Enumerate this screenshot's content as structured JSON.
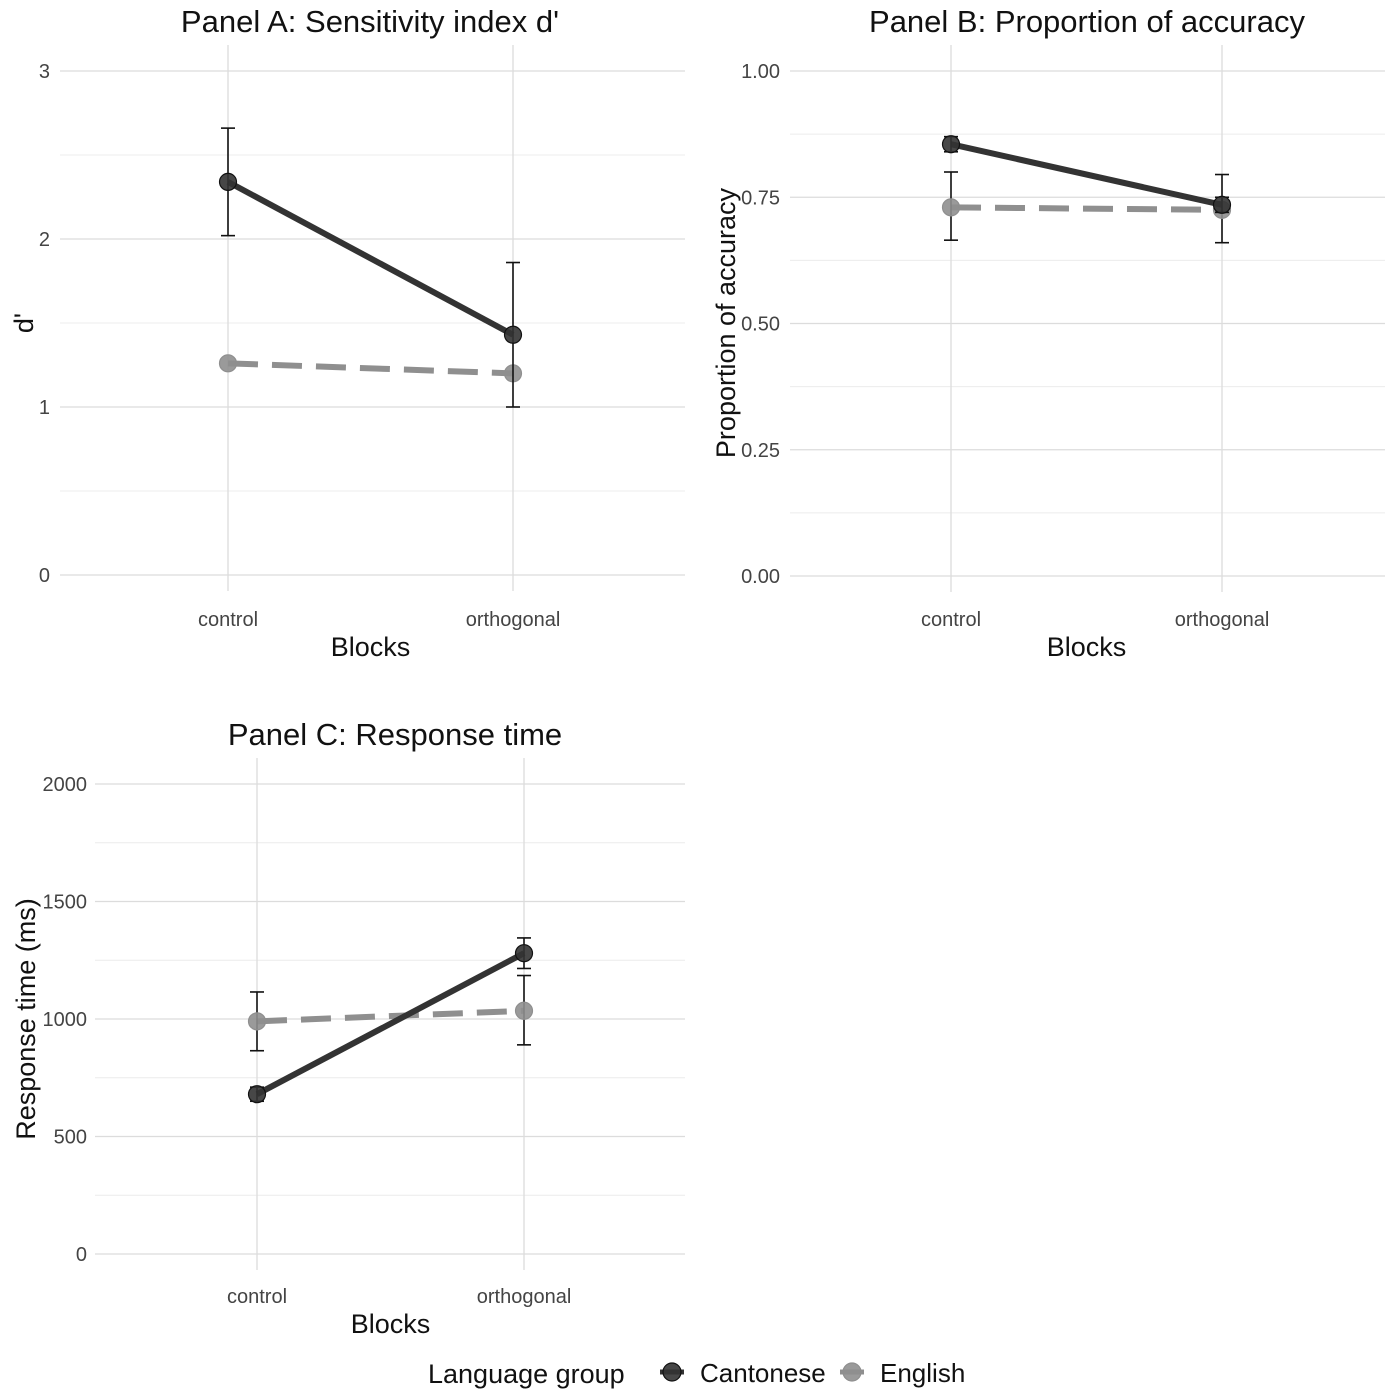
{
  "colors": {
    "cantonese": "#333333",
    "english": "#8f8f8f",
    "grid_major": "#dcdcdc",
    "grid_minor": "#ececec",
    "tick_text": "#444444",
    "title_text": "#111111"
  },
  "legend": {
    "title": "Language group",
    "placement": "bottom",
    "items": [
      {
        "name": "Cantonese",
        "color": "#333333"
      },
      {
        "name": "English",
        "color": "#8f8f8f"
      }
    ]
  },
  "chart_data": [
    {
      "type": "line",
      "title": "Panel A: Sensitivity index d'",
      "xlabel": "Blocks",
      "ylabel": "d'",
      "categories": [
        "control",
        "orthogonal"
      ],
      "ylim": [
        0,
        3
      ],
      "yticks": [
        0,
        1,
        2,
        3
      ],
      "ytick_labels": [
        "0",
        "1",
        "2",
        "3"
      ],
      "grid": true,
      "series": [
        {
          "name": "Cantonese",
          "values": [
            2.34,
            1.43
          ],
          "err_low": [
            2.02,
            1.0
          ],
          "err_high": [
            2.66,
            1.86
          ],
          "line": "solid"
        },
        {
          "name": "English",
          "values": [
            1.26,
            1.2
          ],
          "line": "dashed"
        }
      ]
    },
    {
      "type": "line",
      "title": "Panel B: Proportion of accuracy",
      "xlabel": "Blocks",
      "ylabel": "Proportion of accuracy",
      "categories": [
        "control",
        "orthogonal"
      ],
      "ylim": [
        0,
        1
      ],
      "yticks": [
        0,
        0.25,
        0.5,
        0.75,
        1
      ],
      "ytick_labels": [
        "0.00",
        "0.25",
        "0.50",
        "0.75",
        "1.00"
      ],
      "grid": true,
      "series": [
        {
          "name": "Cantonese",
          "values": [
            0.855,
            0.735
          ],
          "err_low": [
            0.84,
            0.72
          ],
          "err_high": [
            0.87,
            0.75
          ],
          "line": "solid"
        },
        {
          "name": "English",
          "values": [
            0.73,
            0.725
          ],
          "err_low": [
            0.665,
            0.66
          ],
          "err_high": [
            0.8,
            0.795
          ],
          "line": "dashed"
        }
      ]
    },
    {
      "type": "line",
      "title": "Panel C: Response time",
      "xlabel": "Blocks",
      "ylabel": "Response time (ms)",
      "categories": [
        "control",
        "orthogonal"
      ],
      "ylim": [
        0,
        2000
      ],
      "yticks": [
        0,
        500,
        1000,
        1500,
        2000
      ],
      "ytick_labels": [
        "0",
        "500",
        "1000",
        "1500",
        "2000"
      ],
      "grid": true,
      "series": [
        {
          "name": "Cantonese",
          "values": [
            680,
            1280
          ],
          "err_low": [
            650,
            1215
          ],
          "err_high": [
            710,
            1345
          ],
          "line": "solid"
        },
        {
          "name": "English",
          "values": [
            990,
            1035
          ],
          "err_low": [
            865,
            890
          ],
          "err_high": [
            1115,
            1185
          ],
          "line": "dashed"
        }
      ]
    }
  ]
}
